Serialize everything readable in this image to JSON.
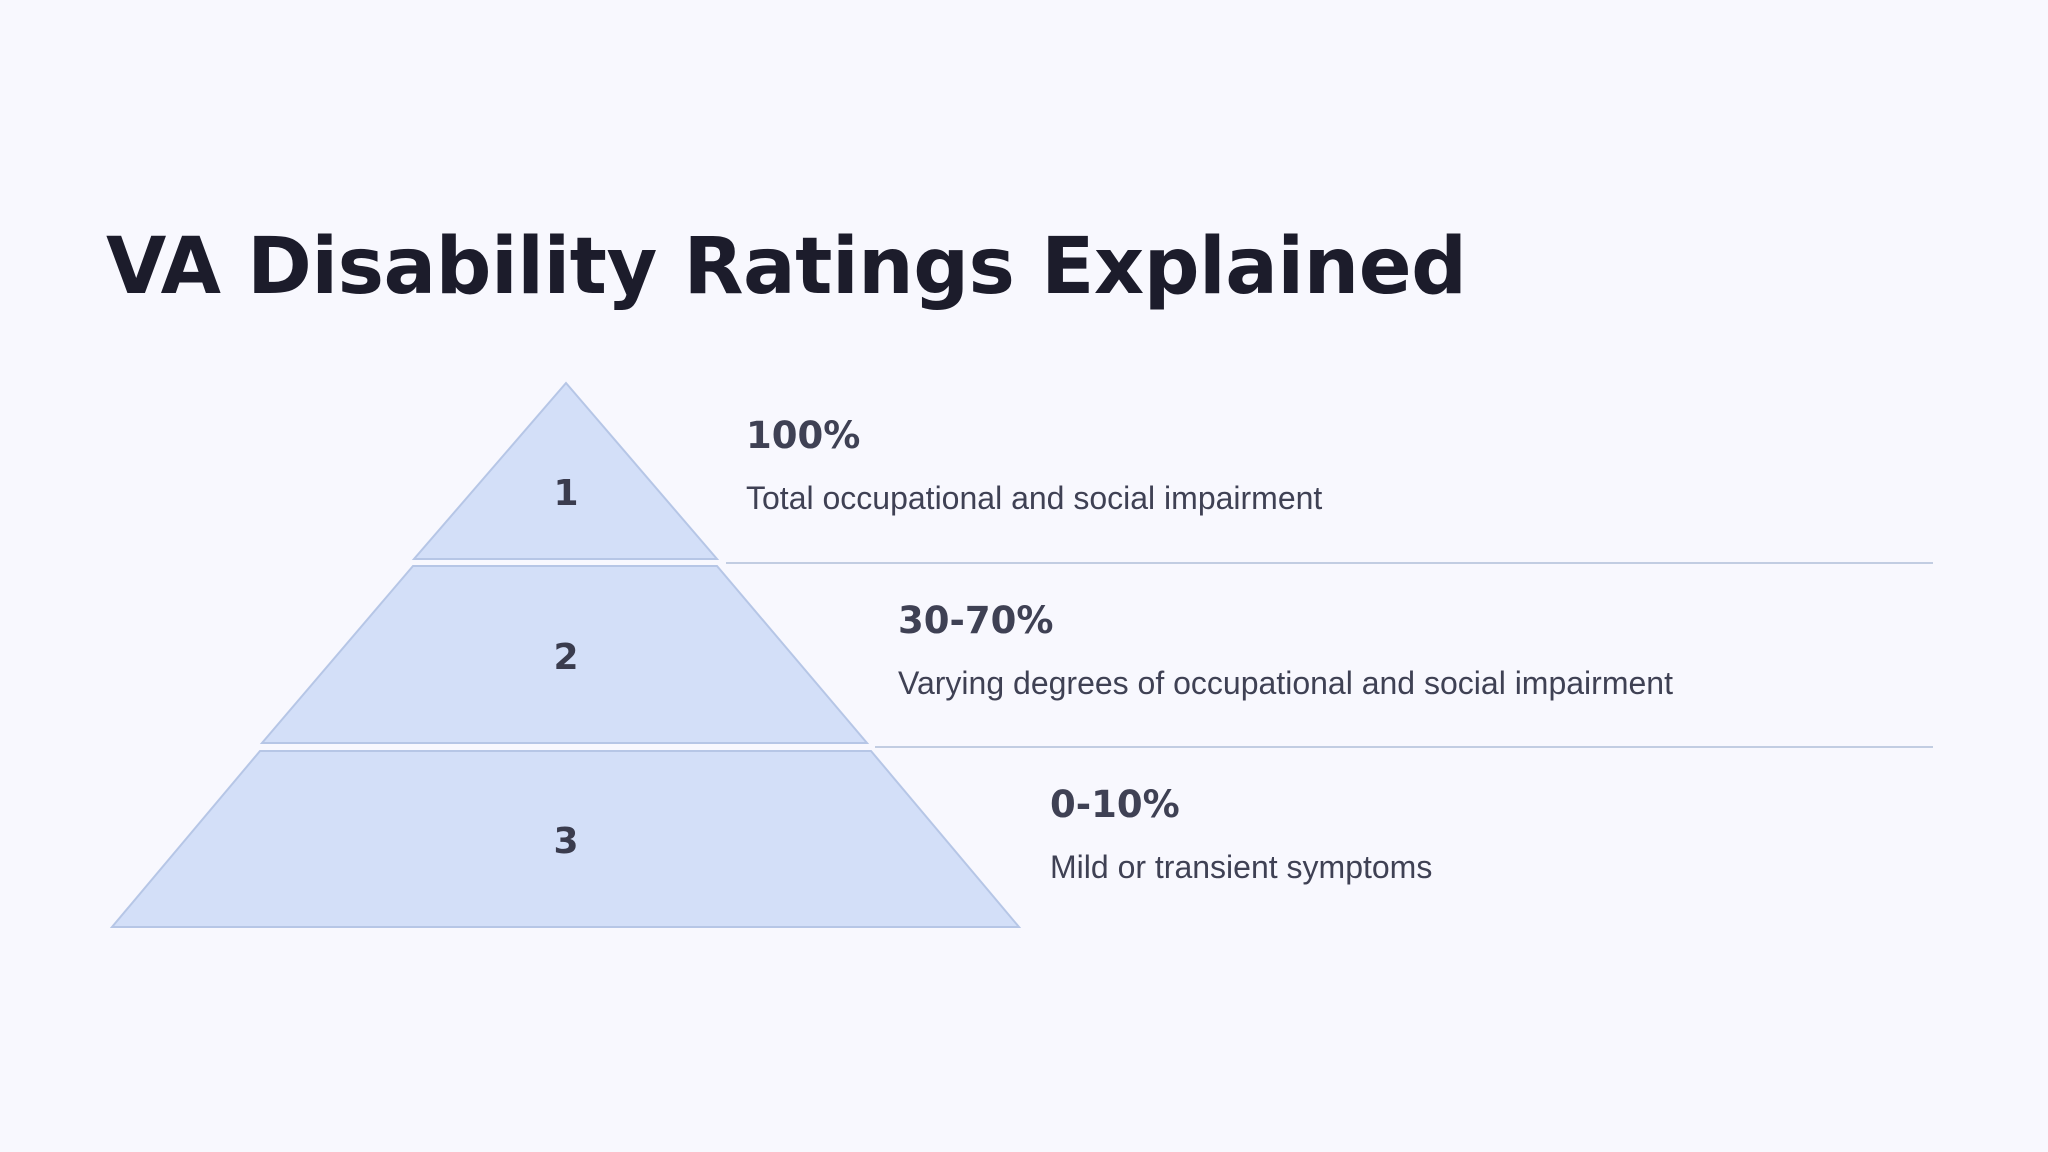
{
  "title": "VA Disability Ratings Explained",
  "colors": {
    "background": "#f8f8fe",
    "tier_fill": "#d3dff8",
    "tier_stroke": "#b6c6e6",
    "text": "#3f4154",
    "title": "#1c1c2b"
  },
  "tiers": [
    {
      "number": "1",
      "heading": "100%",
      "description": "Total occupational and social impairment"
    },
    {
      "number": "2",
      "heading": "30-70%",
      "description": "Varying degrees of occupational and social impairment"
    },
    {
      "number": "3",
      "heading": "0-10%",
      "description": "Mild or transient symptoms"
    }
  ]
}
